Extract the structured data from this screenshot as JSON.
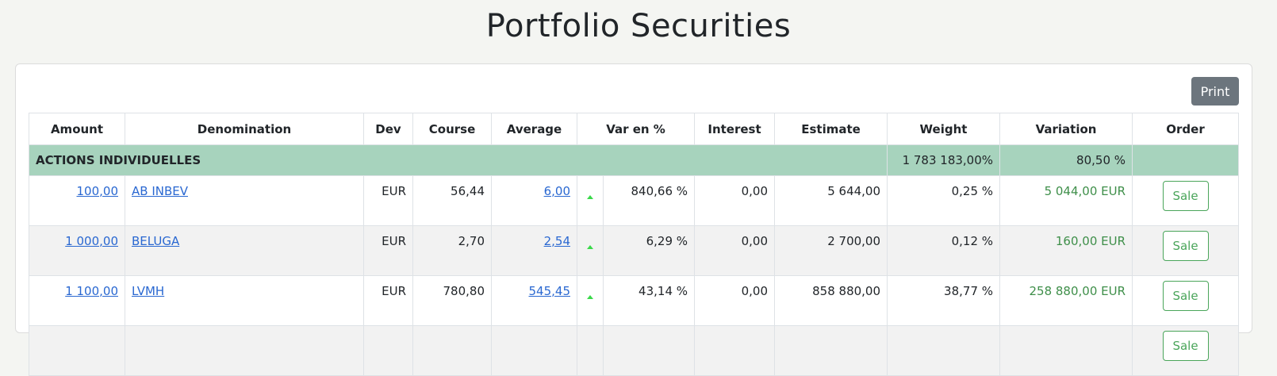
{
  "page": {
    "title": "Portfolio Securities"
  },
  "toolbar": {
    "print_label": "Print"
  },
  "table": {
    "headers": {
      "amount": "Amount",
      "denomination": "Denomination",
      "dev": "Dev",
      "course": "Course",
      "average": "Average",
      "var_pct": "Var en %",
      "interest": "Interest",
      "estimate": "Estimate",
      "weight": "Weight",
      "variation": "Variation",
      "order": "Order"
    },
    "group": {
      "label": "ACTIONS INDIVIDUELLES",
      "weight": "1 783 183,00%",
      "variation": "80,50 %"
    },
    "rows": [
      {
        "amount": "100,00",
        "denomination": "AB INBEV",
        "dev": "EUR",
        "course": "56,44",
        "average": "6,00",
        "trend": "up",
        "var_pct": "840,66 %",
        "interest": "0,00",
        "estimate": "5 644,00",
        "weight": "0,25 %",
        "variation": "5 044,00 EUR",
        "order_label": "Sale"
      },
      {
        "amount": "1 000,00",
        "denomination": "BELUGA",
        "dev": "EUR",
        "course": "2,70",
        "average": "2,54",
        "trend": "up",
        "var_pct": "6,29 %",
        "interest": "0,00",
        "estimate": "2 700,00",
        "weight": "0,12 %",
        "variation": "160,00 EUR",
        "order_label": "Sale"
      },
      {
        "amount": "1 100,00",
        "denomination": "LVMH",
        "dev": "EUR",
        "course": "780,80",
        "average": "545,45",
        "trend": "up",
        "var_pct": "43,14 %",
        "interest": "0,00",
        "estimate": "858 880,00",
        "weight": "38,77 %",
        "variation": "258 880,00 EUR",
        "order_label": "Sale"
      },
      {
        "amount": "",
        "denomination": "",
        "dev": "",
        "course": "",
        "average": "",
        "trend": "",
        "var_pct": "",
        "interest": "",
        "estimate": "",
        "weight": "",
        "variation": "",
        "order_label": "Sale"
      }
    ]
  },
  "colors": {
    "group_row_bg": "#a7d3bd",
    "positive": "#3f8f4a",
    "link": "#2a68d1",
    "trend_up": "#3ad94a",
    "print_button_bg": "#6c757d"
  }
}
